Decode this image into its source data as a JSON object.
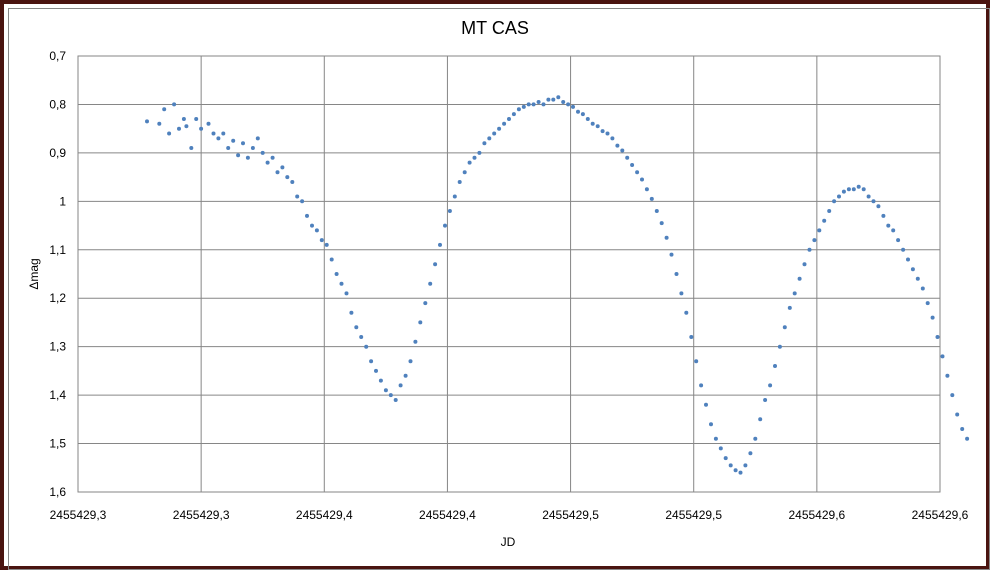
{
  "chart_data": {
    "type": "scatter",
    "title": "MT CAS",
    "xlabel": "JD",
    "ylabel": "Δmag",
    "x_tick_labels": [
      "2455429,3",
      "2455429,3",
      "2455429,4",
      "2455429,4",
      "2455429,5",
      "2455429,5",
      "2455429,6",
      "2455429,6"
    ],
    "y_tick_labels": [
      "0,7",
      "0,8",
      "0,9",
      "1",
      "1,1",
      "1,2",
      "1,3",
      "1,4",
      "1,5",
      "1,6"
    ],
    "xlim": [
      2455429.25,
      2455429.6
    ],
    "ylim": [
      0.7,
      1.6
    ],
    "y_inverted": true,
    "grid": true,
    "legend": "none",
    "marker_color": "#4f81bd",
    "series": [
      {
        "x": [
          2455429.278,
          2455429.283,
          2455429.285,
          2455429.287,
          2455429.289,
          2455429.291,
          2455429.293,
          2455429.294,
          2455429.296,
          2455429.298,
          2455429.3,
          2455429.303,
          2455429.305,
          2455429.307,
          2455429.309,
          2455429.311,
          2455429.313,
          2455429.315,
          2455429.317,
          2455429.319,
          2455429.321,
          2455429.323,
          2455429.325,
          2455429.327,
          2455429.329,
          2455429.331,
          2455429.333,
          2455429.335,
          2455429.337,
          2455429.339,
          2455429.341,
          2455429.343,
          2455429.345,
          2455429.347,
          2455429.349,
          2455429.351,
          2455429.353,
          2455429.355,
          2455429.357,
          2455429.359,
          2455429.361,
          2455429.363,
          2455429.365,
          2455429.367,
          2455429.369,
          2455429.371,
          2455429.373,
          2455429.375,
          2455429.377,
          2455429.379,
          2455429.381,
          2455429.383,
          2455429.385,
          2455429.387,
          2455429.389,
          2455429.391,
          2455429.393,
          2455429.395,
          2455429.397,
          2455429.399,
          2455429.401,
          2455429.403,
          2455429.405,
          2455429.407,
          2455429.409,
          2455429.411,
          2455429.413,
          2455429.415,
          2455429.417,
          2455429.419,
          2455429.421,
          2455429.423,
          2455429.425,
          2455429.427,
          2455429.429,
          2455429.431,
          2455429.433,
          2455429.435,
          2455429.437,
          2455429.439,
          2455429.441,
          2455429.443,
          2455429.445,
          2455429.447,
          2455429.449,
          2455429.451,
          2455429.453,
          2455429.455,
          2455429.457,
          2455429.459,
          2455429.461,
          2455429.463,
          2455429.465,
          2455429.467,
          2455429.469,
          2455429.471,
          2455429.473,
          2455429.475,
          2455429.477,
          2455429.479,
          2455429.481,
          2455429.483,
          2455429.485,
          2455429.487,
          2455429.489,
          2455429.491,
          2455429.493,
          2455429.495,
          2455429.497,
          2455429.499,
          2455429.501,
          2455429.503,
          2455429.505,
          2455429.507,
          2455429.509,
          2455429.511,
          2455429.513,
          2455429.515,
          2455429.517,
          2455429.519,
          2455429.521,
          2455429.523,
          2455429.525,
          2455429.527,
          2455429.529,
          2455429.531,
          2455429.533,
          2455429.535,
          2455429.537,
          2455429.539,
          2455429.541,
          2455429.543,
          2455429.545,
          2455429.547,
          2455429.549,
          2455429.551,
          2455429.553,
          2455429.555,
          2455429.557,
          2455429.559,
          2455429.561,
          2455429.563,
          2455429.565,
          2455429.567,
          2455429.569,
          2455429.571,
          2455429.573,
          2455429.575,
          2455429.577,
          2455429.579,
          2455429.581,
          2455429.583,
          2455429.585,
          2455429.587,
          2455429.589,
          2455429.591,
          2455429.593,
          2455429.595,
          2455429.597,
          2455429.599,
          2455429.601,
          2455429.603,
          2455429.605,
          2455429.607,
          2455429.609,
          2455429.611
        ],
        "y": [
          0.835,
          0.84,
          0.81,
          0.86,
          0.8,
          0.85,
          0.83,
          0.845,
          0.89,
          0.83,
          0.85,
          0.84,
          0.86,
          0.87,
          0.86,
          0.89,
          0.875,
          0.905,
          0.88,
          0.91,
          0.89,
          0.87,
          0.9,
          0.92,
          0.91,
          0.94,
          0.93,
          0.95,
          0.96,
          0.99,
          1.0,
          1.03,
          1.05,
          1.06,
          1.08,
          1.09,
          1.12,
          1.15,
          1.17,
          1.19,
          1.23,
          1.26,
          1.28,
          1.3,
          1.33,
          1.35,
          1.37,
          1.39,
          1.4,
          1.41,
          1.38,
          1.36,
          1.33,
          1.29,
          1.25,
          1.21,
          1.17,
          1.13,
          1.09,
          1.05,
          1.02,
          0.99,
          0.96,
          0.94,
          0.92,
          0.91,
          0.9,
          0.88,
          0.87,
          0.86,
          0.85,
          0.84,
          0.83,
          0.82,
          0.81,
          0.805,
          0.8,
          0.8,
          0.795,
          0.8,
          0.79,
          0.79,
          0.785,
          0.795,
          0.8,
          0.805,
          0.815,
          0.82,
          0.83,
          0.84,
          0.845,
          0.855,
          0.86,
          0.87,
          0.885,
          0.895,
          0.91,
          0.925,
          0.94,
          0.955,
          0.975,
          0.995,
          1.02,
          1.045,
          1.075,
          1.11,
          1.15,
          1.19,
          1.23,
          1.28,
          1.33,
          1.38,
          1.42,
          1.46,
          1.49,
          1.51,
          1.53,
          1.545,
          1.555,
          1.56,
          1.545,
          1.52,
          1.49,
          1.45,
          1.41,
          1.38,
          1.34,
          1.3,
          1.26,
          1.22,
          1.19,
          1.16,
          1.13,
          1.1,
          1.08,
          1.06,
          1.04,
          1.02,
          1.0,
          0.99,
          0.98,
          0.975,
          0.975,
          0.97,
          0.975,
          0.99,
          1.0,
          1.01,
          1.03,
          1.05,
          1.06,
          1.08,
          1.1,
          1.12,
          1.14,
          1.16,
          1.18,
          1.21,
          1.24,
          1.28,
          1.32,
          1.36,
          1.4,
          1.44,
          1.47,
          1.49
        ]
      }
    ]
  }
}
